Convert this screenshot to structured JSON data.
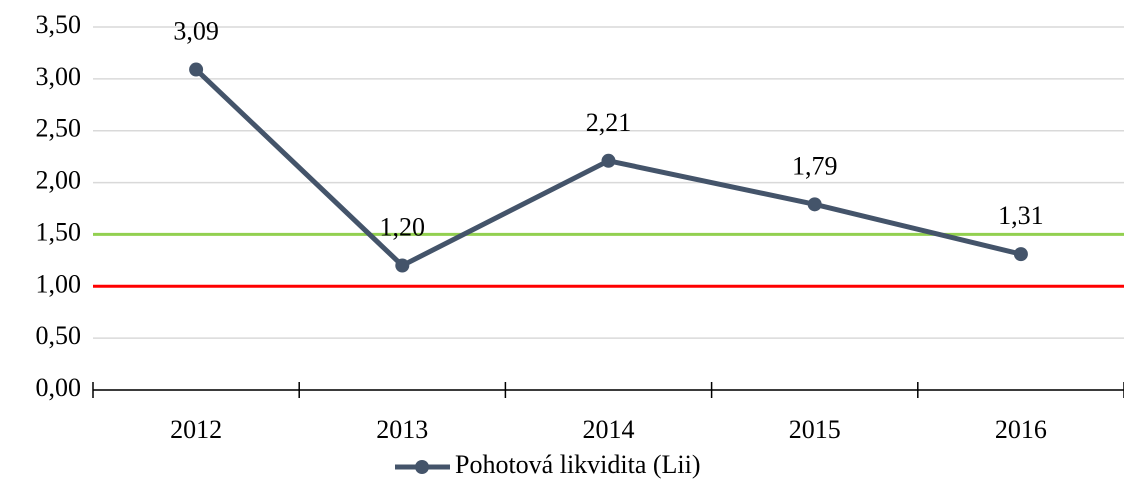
{
  "chart_data": {
    "type": "line",
    "categories": [
      "2012",
      "2013",
      "2014",
      "2015",
      "2016"
    ],
    "series": [
      {
        "name": "Pohotová likvidita (Lii)",
        "color": "#44546a",
        "values": [
          3.09,
          1.2,
          2.21,
          1.79,
          1.31
        ],
        "value_labels": [
          "3,09",
          "1,20",
          "2,21",
          "1,79",
          "1,31"
        ]
      }
    ],
    "reference_lines": [
      {
        "value": 1.5,
        "color": "#92d050"
      },
      {
        "value": 1.0,
        "color": "#ff0000"
      }
    ],
    "ylim": [
      0,
      3.5
    ],
    "yticks": [
      {
        "value": 0,
        "label": "0,00"
      },
      {
        "value": 0.5,
        "label": "0,50"
      },
      {
        "value": 1,
        "label": "1,00"
      },
      {
        "value": 1.5,
        "label": "1,50"
      },
      {
        "value": 2,
        "label": "2,00"
      },
      {
        "value": 2.5,
        "label": "2,50"
      },
      {
        "value": 3,
        "label": "3,00"
      },
      {
        "value": 3.5,
        "label": "3,50"
      }
    ],
    "grid": true,
    "legend": "bottom"
  }
}
